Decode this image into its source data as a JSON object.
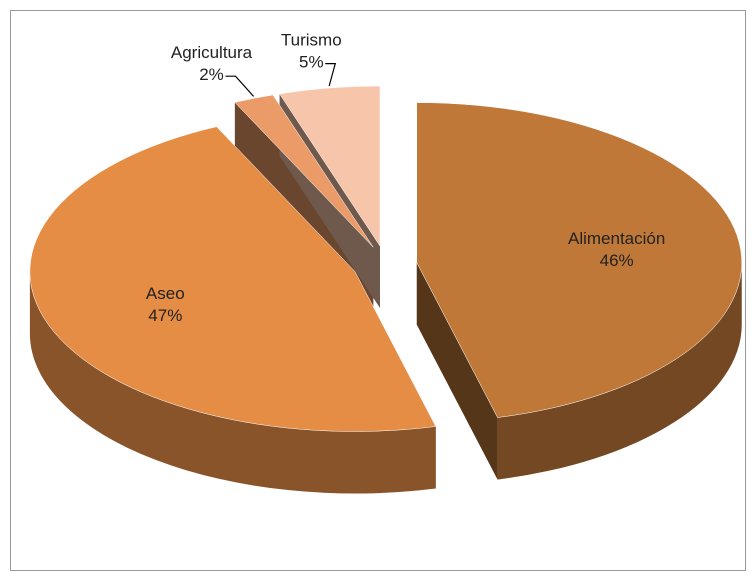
{
  "chart_data": {
    "type": "pie",
    "categories": [
      "Alimentación",
      "Aseo",
      "Agricultura",
      "Turismo"
    ],
    "values": [
      46,
      47,
      2,
      5
    ],
    "value_labels": [
      "46%",
      "47%",
      "2%",
      "5%"
    ],
    "colors": [
      "#c07838",
      "#e58c45",
      "#eb9b68",
      "#f6c5aa"
    ]
  }
}
